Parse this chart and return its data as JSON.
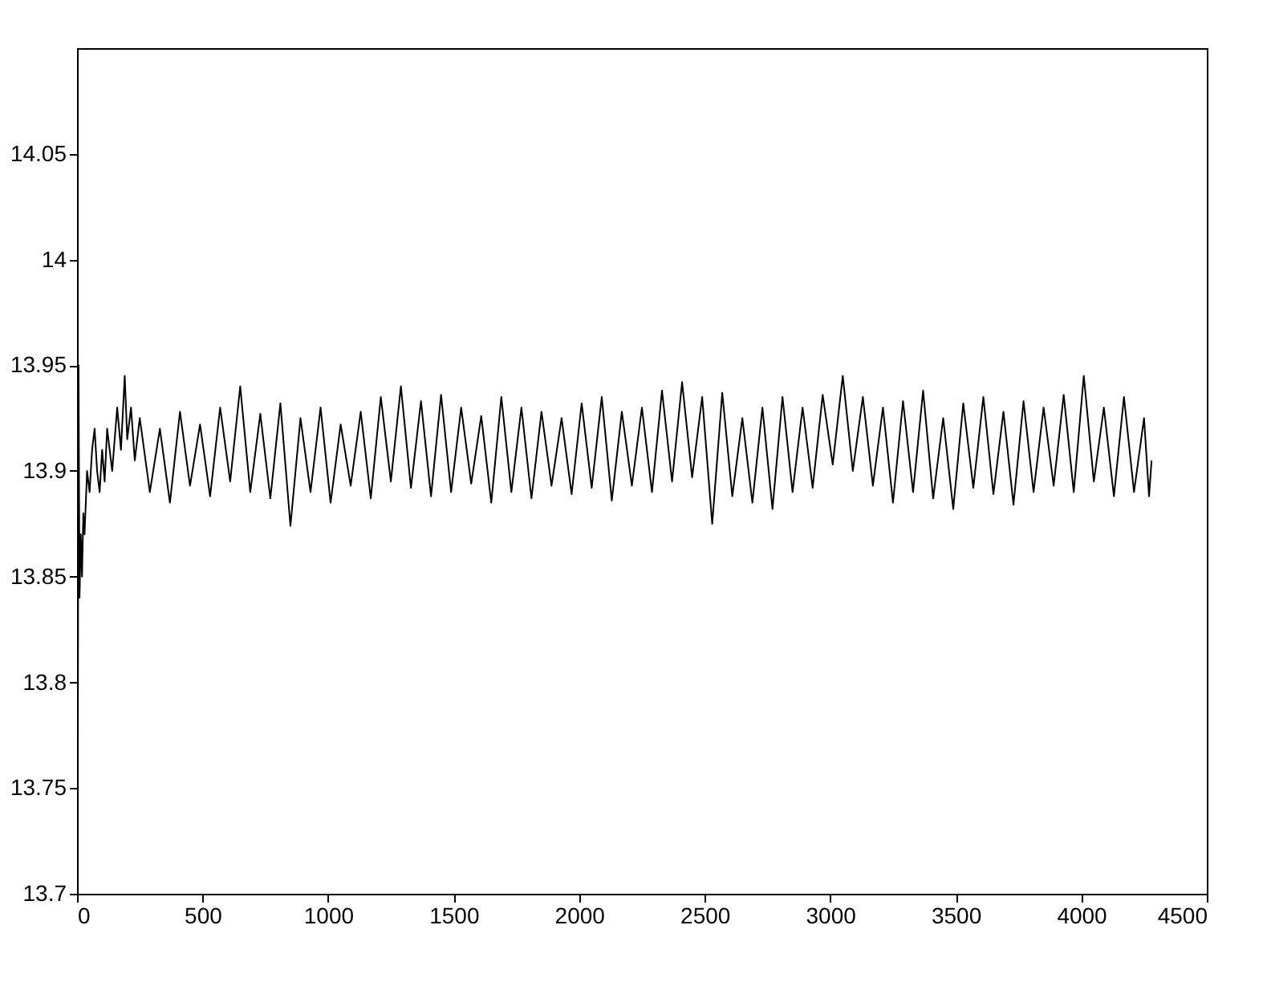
{
  "chart_data": {
    "type": "line",
    "grid": false,
    "marker": "none",
    "line_style": "solid",
    "xlim": [
      0,
      4500
    ],
    "xticks": [
      0,
      500,
      1000,
      1500,
      2000,
      2500,
      3000,
      3500,
      4000,
      4500
    ],
    "ylim": [
      13.7,
      14.1
    ],
    "yticks": [
      13.7,
      13.75,
      13.8,
      13.85,
      13.9,
      13.95,
      14,
      14.05
    ],
    "series": [
      {
        "color": "#000000",
        "x": [
          0,
          3,
          6,
          10,
          15,
          20,
          25,
          30,
          40,
          50,
          60,
          70,
          80,
          90,
          100,
          110,
          120,
          140,
          160,
          175,
          190,
          200,
          215,
          230,
          250,
          290,
          330,
          370,
          410,
          450,
          490,
          530,
          570,
          610,
          650,
          690,
          730,
          770,
          810,
          850,
          890,
          930,
          970,
          1010,
          1050,
          1090,
          1130,
          1170,
          1210,
          1250,
          1290,
          1330,
          1370,
          1410,
          1450,
          1490,
          1530,
          1570,
          1610,
          1650,
          1690,
          1730,
          1770,
          1810,
          1850,
          1890,
          1930,
          1970,
          2010,
          2050,
          2090,
          2130,
          2170,
          2210,
          2250,
          2290,
          2330,
          2370,
          2410,
          2450,
          2490,
          2530,
          2570,
          2610,
          2650,
          2690,
          2730,
          2770,
          2810,
          2850,
          2890,
          2930,
          2970,
          3010,
          3050,
          3090,
          3130,
          3170,
          3210,
          3250,
          3290,
          3330,
          3370,
          3410,
          3450,
          3490,
          3530,
          3570,
          3610,
          3650,
          3690,
          3730,
          3770,
          3810,
          3850,
          3890,
          3930,
          3970,
          4010,
          4050,
          4090,
          4130,
          4170,
          4210,
          4250,
          4270,
          4280
        ],
        "values": [
          13.99,
          13.76,
          13.95,
          13.84,
          13.87,
          13.85,
          13.88,
          13.87,
          13.9,
          13.89,
          13.91,
          13.92,
          13.9,
          13.89,
          13.91,
          13.895,
          13.92,
          13.9,
          13.93,
          13.91,
          13.945,
          13.915,
          13.93,
          13.905,
          13.925,
          13.89,
          13.92,
          13.885,
          13.928,
          13.893,
          13.922,
          13.888,
          13.93,
          13.895,
          13.94,
          13.89,
          13.927,
          13.887,
          13.932,
          13.874,
          13.925,
          13.89,
          13.93,
          13.885,
          13.922,
          13.893,
          13.928,
          13.887,
          13.935,
          13.895,
          13.94,
          13.892,
          13.933,
          13.888,
          13.936,
          13.89,
          13.93,
          13.894,
          13.926,
          13.885,
          13.935,
          13.89,
          13.93,
          13.887,
          13.928,
          13.893,
          13.925,
          13.889,
          13.932,
          13.892,
          13.935,
          13.886,
          13.928,
          13.893,
          13.93,
          13.89,
          13.938,
          13.895,
          13.942,
          13.897,
          13.935,
          13.875,
          13.937,
          13.888,
          13.925,
          13.885,
          13.93,
          13.882,
          13.935,
          13.89,
          13.93,
          13.892,
          13.936,
          13.903,
          13.945,
          13.9,
          13.935,
          13.893,
          13.93,
          13.885,
          13.933,
          13.89,
          13.938,
          13.887,
          13.925,
          13.882,
          13.932,
          13.892,
          13.935,
          13.889,
          13.928,
          13.884,
          13.933,
          13.89,
          13.93,
          13.893,
          13.936,
          13.89,
          13.945,
          13.895,
          13.93,
          13.888,
          13.935,
          13.89,
          13.925,
          13.888,
          13.905
        ]
      }
    ]
  }
}
